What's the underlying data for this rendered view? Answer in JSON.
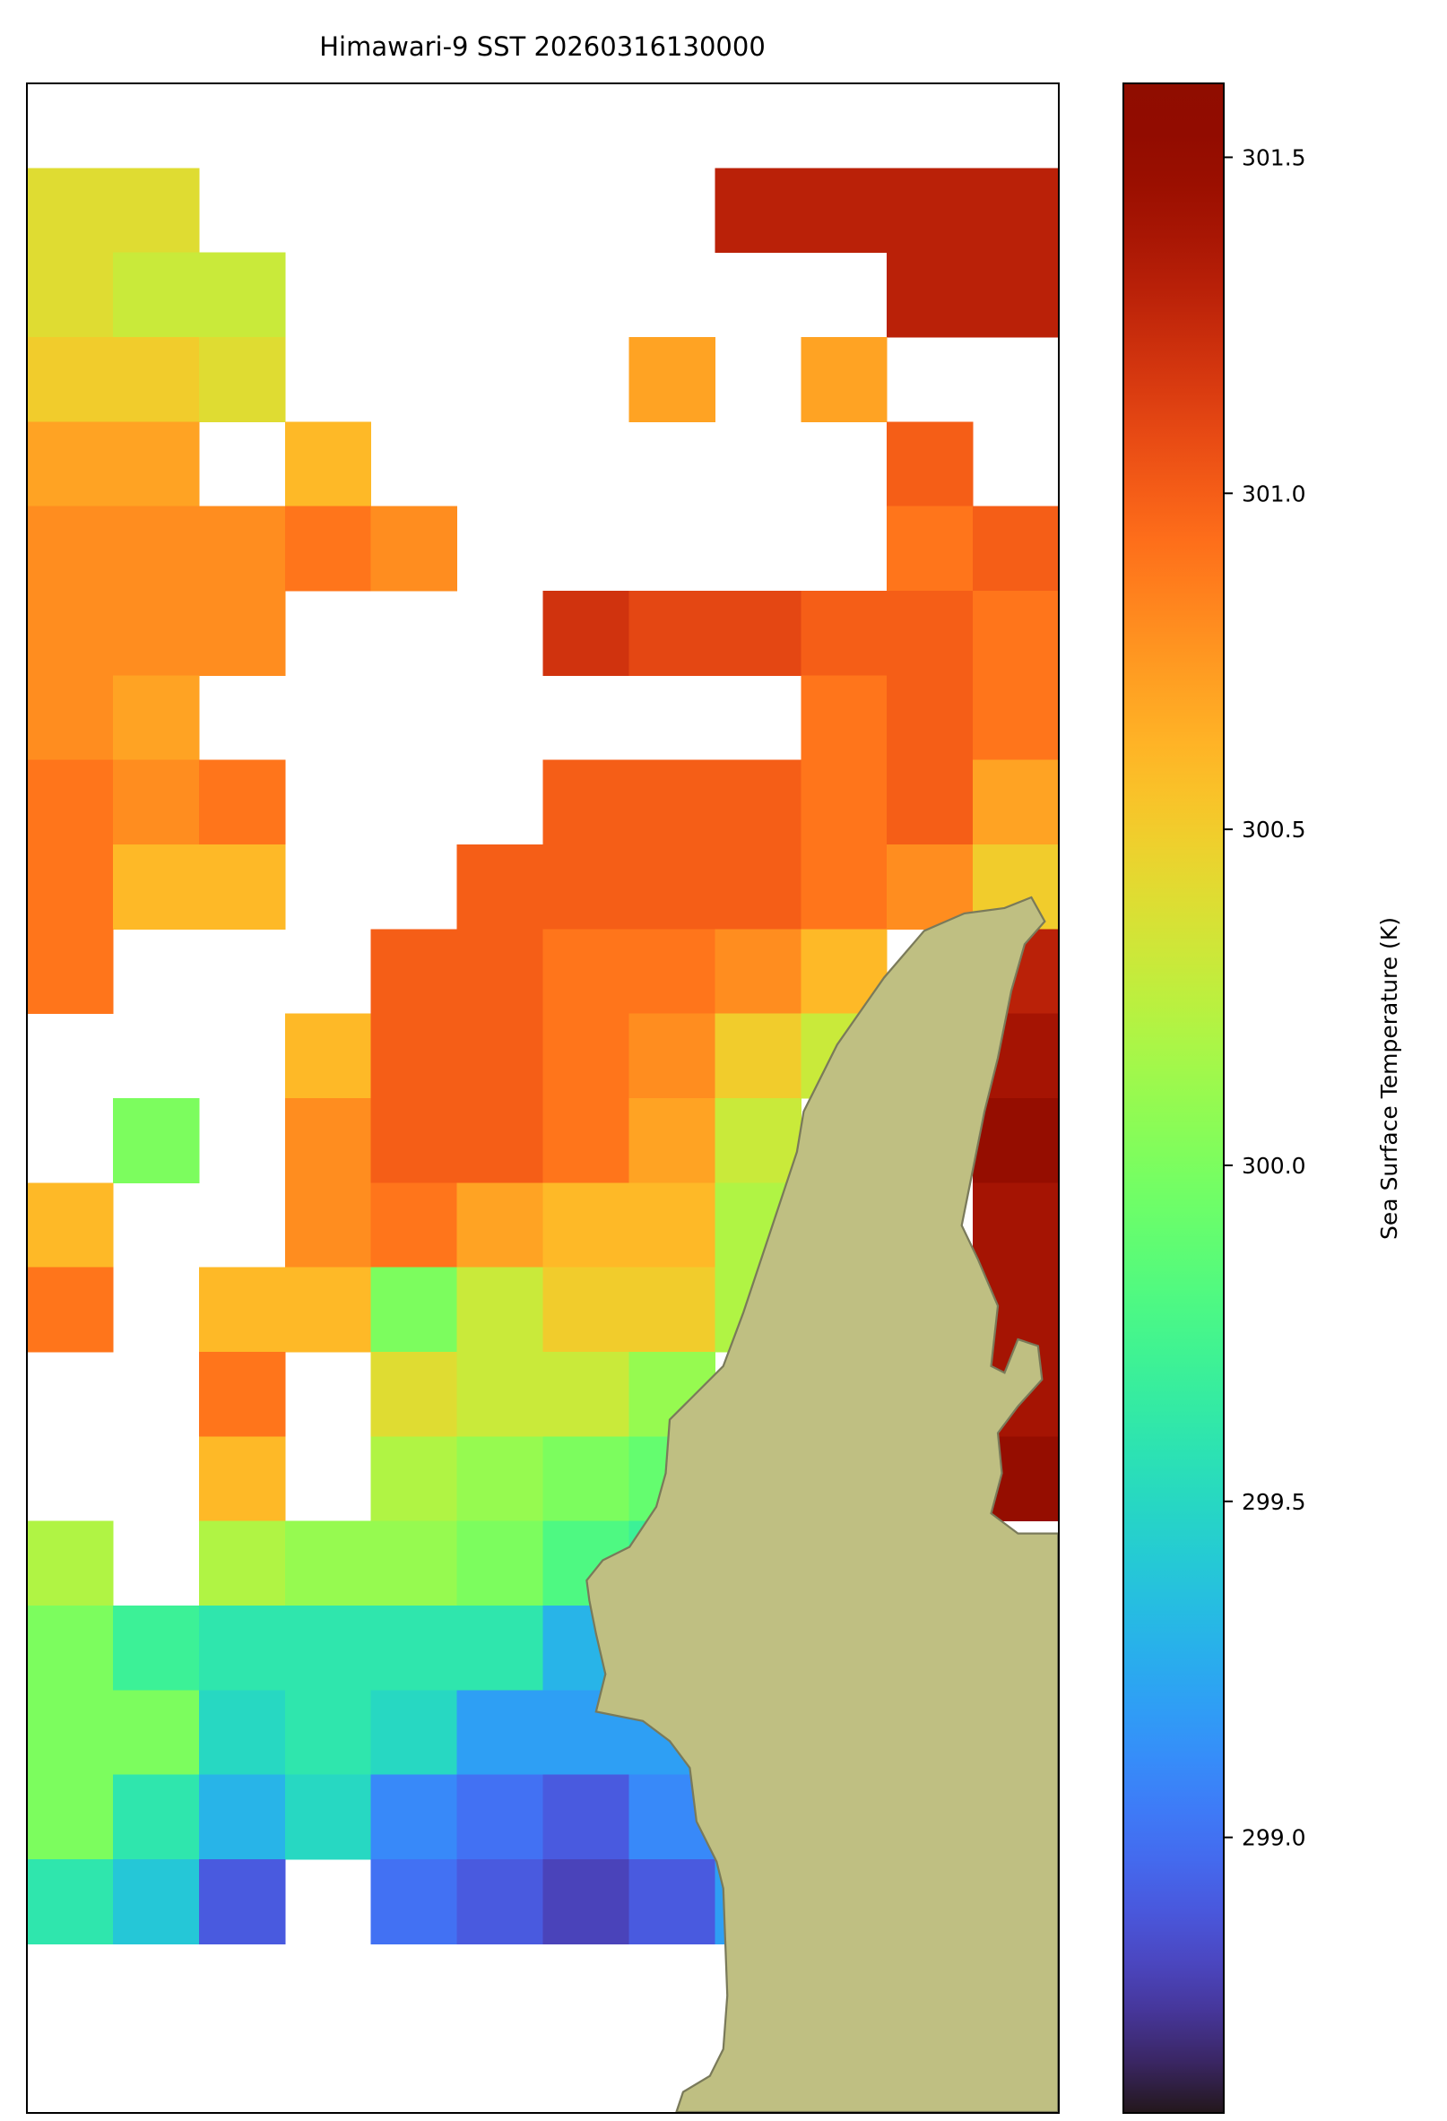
{
  "chart_data": {
    "type": "heatmap",
    "title": "Himawari-9 SST 20260316130000",
    "colormap": "turbo",
    "colorbar_label": "Sea Surface Temperature (K)",
    "clim": [
      298.59,
      301.61
    ],
    "cticks": [
      {
        "value": 299.0,
        "label": "299.0"
      },
      299.5,
      {
        "value": 300.0,
        "label": "300.0"
      },
      300.5,
      {
        "value": 301.0,
        "label": "301.0"
      },
      301.5
    ],
    "values": [
      [
        null,
        null,
        null,
        null,
        null,
        null,
        null,
        null,
        null,
        null,
        null,
        null
      ],
      [
        300.4,
        300.4,
        null,
        null,
        null,
        null,
        null,
        null,
        301.3,
        301.3,
        301.3,
        301.3
      ],
      [
        300.4,
        300.3,
        300.3,
        null,
        null,
        null,
        null,
        null,
        null,
        null,
        301.3,
        301.3
      ],
      [
        300.5,
        300.5,
        300.4,
        null,
        null,
        null,
        null,
        300.7,
        null,
        300.7,
        null,
        null
      ],
      [
        300.7,
        300.7,
        null,
        300.6,
        null,
        null,
        null,
        null,
        null,
        null,
        301.0,
        null
      ],
      [
        300.8,
        300.8,
        300.8,
        300.9,
        300.8,
        null,
        null,
        null,
        null,
        null,
        300.9,
        301.0
      ],
      [
        300.8,
        300.8,
        300.8,
        null,
        null,
        null,
        301.2,
        301.1,
        301.1,
        301.0,
        301.0,
        300.9
      ],
      [
        300.8,
        300.7,
        null,
        null,
        null,
        null,
        null,
        null,
        null,
        300.9,
        301.0,
        300.9
      ],
      [
        300.9,
        300.8,
        300.9,
        null,
        null,
        null,
        301.0,
        301.0,
        301.0,
        300.9,
        301.0,
        300.7
      ],
      [
        300.9,
        300.6,
        300.6,
        null,
        null,
        301.0,
        301.0,
        301.0,
        301.0,
        300.9,
        300.8,
        300.5
      ],
      [
        300.9,
        null,
        null,
        null,
        301.0,
        301.0,
        300.9,
        300.9,
        300.8,
        300.6,
        null,
        301.3
      ],
      [
        null,
        null,
        null,
        300.6,
        301.0,
        301.0,
        300.9,
        300.8,
        300.5,
        300.3,
        null,
        301.4
      ],
      [
        null,
        300.0,
        null,
        300.8,
        301.0,
        301.0,
        300.9,
        300.7,
        300.3,
        null,
        null,
        301.5
      ],
      [
        300.6,
        null,
        null,
        300.8,
        300.9,
        300.7,
        300.6,
        300.6,
        300.2,
        null,
        null,
        301.4
      ],
      [
        300.9,
        null,
        300.6,
        300.6,
        300.0,
        300.3,
        300.5,
        300.5,
        300.2,
        null,
        null,
        301.4
      ],
      [
        null,
        null,
        300.9,
        null,
        300.4,
        300.3,
        300.3,
        300.1,
        null,
        null,
        null,
        301.4
      ],
      [
        null,
        null,
        300.6,
        null,
        300.2,
        300.1,
        300.0,
        299.9,
        null,
        null,
        null,
        301.5
      ],
      [
        300.2,
        null,
        300.2,
        300.1,
        300.1,
        300.0,
        299.8,
        299.7,
        null,
        null,
        null,
        null
      ],
      [
        300.0,
        299.7,
        299.6,
        299.6,
        299.6,
        299.6,
        299.3,
        null,
        null,
        null,
        null,
        null
      ],
      [
        300.0,
        300.0,
        299.5,
        299.6,
        299.5,
        299.2,
        299.2,
        299.2,
        null,
        null,
        null,
        null
      ],
      [
        300.0,
        299.6,
        299.3,
        299.5,
        299.1,
        299.0,
        298.9,
        299.1,
        299.3,
        null,
        null,
        null
      ],
      [
        299.6,
        299.4,
        298.9,
        null,
        299.0,
        298.9,
        298.8,
        298.9,
        299.2,
        null,
        null,
        null
      ],
      [
        null,
        null,
        null,
        null,
        null,
        null,
        null,
        null,
        null,
        null,
        null,
        null
      ],
      [
        null,
        null,
        null,
        null,
        null,
        null,
        null,
        null,
        null,
        null,
        null,
        null
      ]
    ]
  }
}
